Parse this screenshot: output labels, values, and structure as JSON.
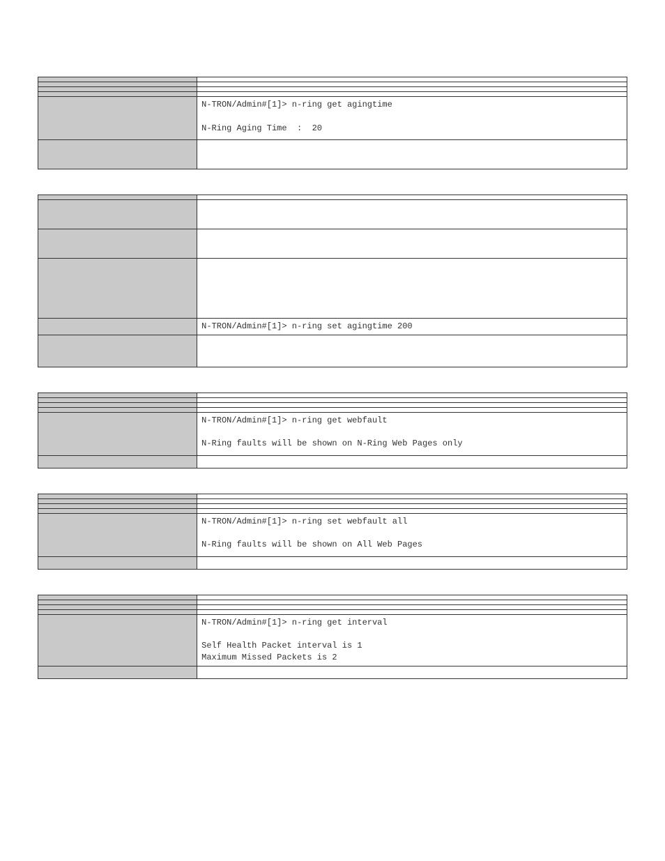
{
  "tables": [
    {
      "rows": [
        {
          "classes": "",
          "value": ""
        },
        {
          "classes": "",
          "value": ""
        },
        {
          "classes": "",
          "value": ""
        },
        {
          "classes": "",
          "value": ""
        },
        {
          "classes": "tall-1",
          "value": "N-TRON/Admin#[1]> n-ring get agingtime\n\nN-Ring Aging Time  :  20"
        },
        {
          "classes": "tall-2",
          "value": ""
        }
      ]
    },
    {
      "rows": [
        {
          "classes": "",
          "value": ""
        },
        {
          "classes": "tall-2",
          "value": ""
        },
        {
          "classes": "tall-2",
          "value": ""
        },
        {
          "classes": "tall-3",
          "value": ""
        },
        {
          "classes": "",
          "value": "N-TRON/Admin#[1]> n-ring set agingtime 200"
        },
        {
          "classes": "tall-4",
          "value": ""
        }
      ]
    },
    {
      "rows": [
        {
          "classes": "",
          "value": ""
        },
        {
          "classes": "",
          "value": ""
        },
        {
          "classes": "",
          "value": ""
        },
        {
          "classes": "",
          "value": ""
        },
        {
          "classes": "tall-1",
          "value": "N-TRON/Admin#[1]> n-ring get webfault\n\nN-Ring faults will be shown on N-Ring Web Pages only"
        },
        {
          "classes": "tall-notes-small",
          "value": ""
        }
      ]
    },
    {
      "rows": [
        {
          "classes": "",
          "value": ""
        },
        {
          "classes": "",
          "value": ""
        },
        {
          "classes": "",
          "value": ""
        },
        {
          "classes": "",
          "value": ""
        },
        {
          "classes": "tall-1",
          "value": "N-TRON/Admin#[1]> n-ring set webfault all\n\nN-Ring faults will be shown on All Web Pages"
        },
        {
          "classes": "tall-notes-small",
          "value": ""
        }
      ]
    },
    {
      "rows": [
        {
          "classes": "",
          "value": ""
        },
        {
          "classes": "",
          "value": ""
        },
        {
          "classes": "",
          "value": ""
        },
        {
          "classes": "",
          "value": ""
        },
        {
          "classes": "tall-1",
          "value": "N-TRON/Admin#[1]> n-ring get interval\n\nSelf Health Packet interval is 1\nMaximum Missed Packets is 2"
        },
        {
          "classes": "tall-notes-small",
          "value": ""
        }
      ]
    }
  ]
}
